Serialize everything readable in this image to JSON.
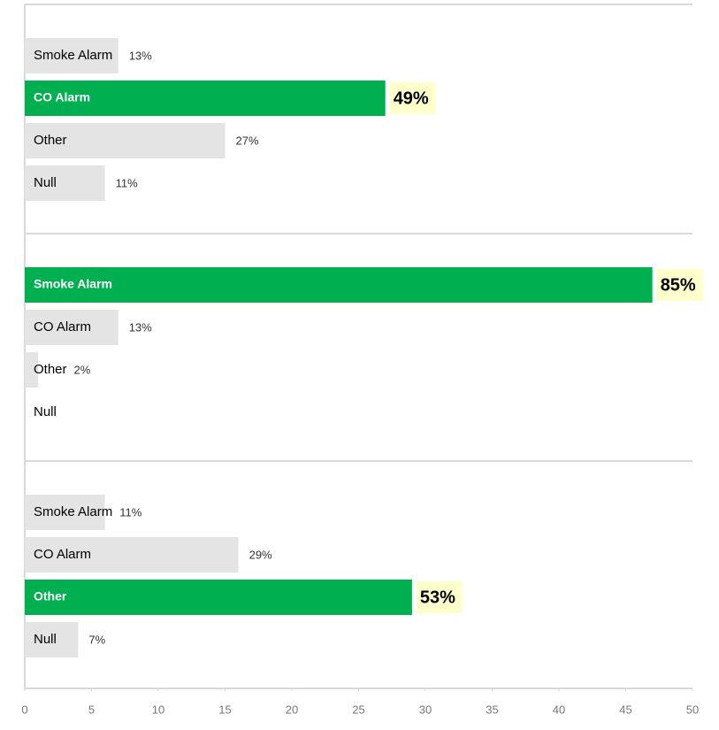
{
  "chart_data": {
    "type": "bar",
    "orientation": "horizontal",
    "xlim": [
      0,
      50
    ],
    "xticks": [
      0,
      5,
      10,
      15,
      20,
      25,
      30,
      35,
      40,
      45,
      50
    ],
    "panels": [
      {
        "categories": [
          "Smoke Alarm",
          "CO Alarm",
          "Other",
          "Null"
        ],
        "values": [
          7,
          27,
          15,
          6
        ],
        "value_labels": [
          "13%",
          "49%",
          "27%",
          "11%"
        ],
        "colors": [
          "#e4e4e4",
          "#00b050",
          "#e4e4e4",
          "#e4e4e4"
        ]
      },
      {
        "categories": [
          "Smoke Alarm",
          "CO Alarm",
          "Other",
          "Null"
        ],
        "values": [
          47,
          7,
          1,
          0
        ],
        "value_labels": [
          "85%",
          "13%",
          "2%",
          null
        ],
        "colors": [
          "#00b050",
          "#e4e4e4",
          "#e4e4e4",
          "#e4e4e4"
        ]
      },
      {
        "categories": [
          "Smoke Alarm",
          "CO Alarm",
          "Other",
          "Null"
        ],
        "values": [
          6,
          16,
          29,
          4
        ],
        "value_labels": [
          "11%",
          "29%",
          "53%",
          "7%"
        ],
        "colors": [
          "#e4e4e4",
          "#e4e4e4",
          "#00b050",
          "#e4e4e4"
        ]
      }
    ]
  }
}
